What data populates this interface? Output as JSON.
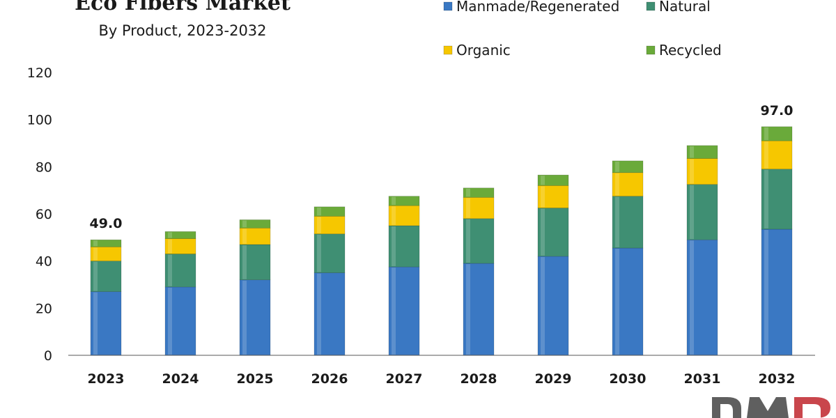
{
  "chart_data": {
    "type": "bar",
    "stacked": true,
    "title": "Eco Fibers Market",
    "subtitle": "By Product, 2023-2032",
    "categories": [
      "2023",
      "2024",
      "2025",
      "2026",
      "2027",
      "2028",
      "2029",
      "2030",
      "2031",
      "2032"
    ],
    "series": [
      {
        "name": "Manmade/Regenerated",
        "color": "#3a78c3",
        "values": [
          27,
          29,
          32,
          35,
          37.5,
          39,
          42,
          45.5,
          49,
          53.5
        ]
      },
      {
        "name": "Natural",
        "color": "#3f8f73",
        "values": [
          13,
          14,
          15,
          16.5,
          17.5,
          19,
          20.5,
          22,
          23.5,
          25.5
        ]
      },
      {
        "name": "Organic",
        "color": "#f6c700",
        "values": [
          6,
          6.5,
          7,
          7.5,
          8.5,
          9,
          9.5,
          10,
          11,
          12
        ]
      },
      {
        "name": "Recycled",
        "color": "#6aaa3a",
        "values": [
          3,
          3,
          3.5,
          4,
          4,
          4,
          4.5,
          5,
          5.5,
          6
        ]
      }
    ],
    "total_labels": [
      {
        "category": "2023",
        "text": "49.0"
      },
      {
        "category": "2032",
        "text": "97.0"
      }
    ],
    "ylim": [
      0,
      120
    ],
    "yticks": [
      0,
      20,
      40,
      60,
      80,
      100,
      120
    ],
    "xlabel": "",
    "ylabel": "",
    "grid": false,
    "legend_position": "top-right"
  },
  "watermark": "DMR"
}
